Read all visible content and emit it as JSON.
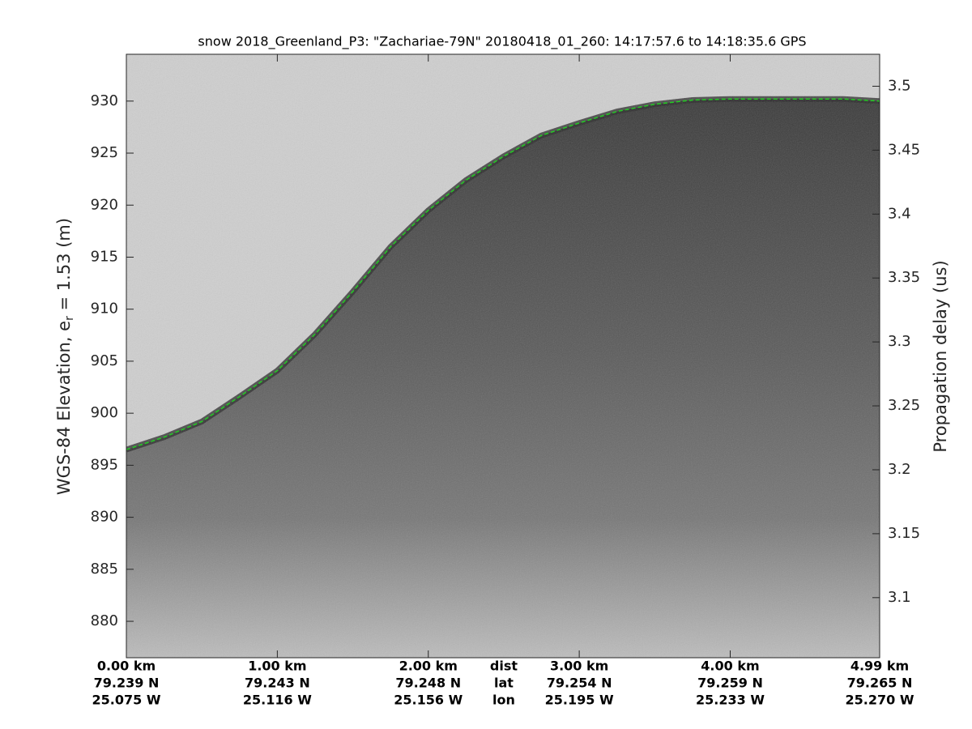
{
  "chart_data": {
    "type": "echogram",
    "title": "snow 2018_Greenland_P3: \"Zachariae-79N\"  20180418_01_260: 14:17:57.6 to 14:18:35.6 GPS",
    "ylabel": [
      "WGS-84 Elevation, e",
      "r",
      " = 1.53 (m)"
    ],
    "y2label": "Propagation delay (us)",
    "x": [
      0,
      0.25,
      0.5,
      0.75,
      1.0,
      1.25,
      1.5,
      1.75,
      2.0,
      2.25,
      2.5,
      2.75,
      3.0,
      3.25,
      3.5,
      3.75,
      4.0,
      4.25,
      4.5,
      4.75,
      4.99
    ],
    "series": [
      {
        "color": "#22cc22",
        "values": [
          896.5,
          897.7,
          899.2,
          901.6,
          904.1,
          907.6,
          911.7,
          916.0,
          919.5,
          922.4,
          924.7,
          926.7,
          927.9,
          929.0,
          929.7,
          930.1,
          930.2,
          930.2,
          930.2,
          930.2,
          930.0
        ]
      }
    ],
    "xlim": [
      0,
      4.99
    ],
    "xticks": [
      {
        "value": 0,
        "label": "0.00 km"
      },
      {
        "value": 1,
        "label": "1.00 km"
      },
      {
        "value": 2,
        "label": "2.00 km"
      },
      {
        "value": 3,
        "label": "3.00 km"
      },
      {
        "value": 4,
        "label": "4.00 km"
      },
      {
        "value": 4.99,
        "label": "4.99 km"
      }
    ],
    "lat_labels": [
      "79.239 N",
      "79.243 N",
      "79.248 N",
      "79.254 N",
      "79.259 N",
      "79.265 N"
    ],
    "lon_labels": [
      "25.075 W",
      "25.116 W",
      "25.156 W",
      "25.195 W",
      "25.233 W",
      "25.270 W"
    ],
    "row_labels": [
      "dist",
      "lat",
      "lon"
    ],
    "ylim": [
      876.5,
      934.5
    ],
    "yticks": [
      880,
      885,
      890,
      895,
      900,
      905,
      910,
      915,
      920,
      925,
      930
    ],
    "y2lim": [
      3.053,
      3.525
    ],
    "y2ticks": [
      3.1,
      3.15,
      3.2,
      3.25,
      3.3,
      3.35,
      3.4,
      3.45,
      3.5
    ]
  }
}
